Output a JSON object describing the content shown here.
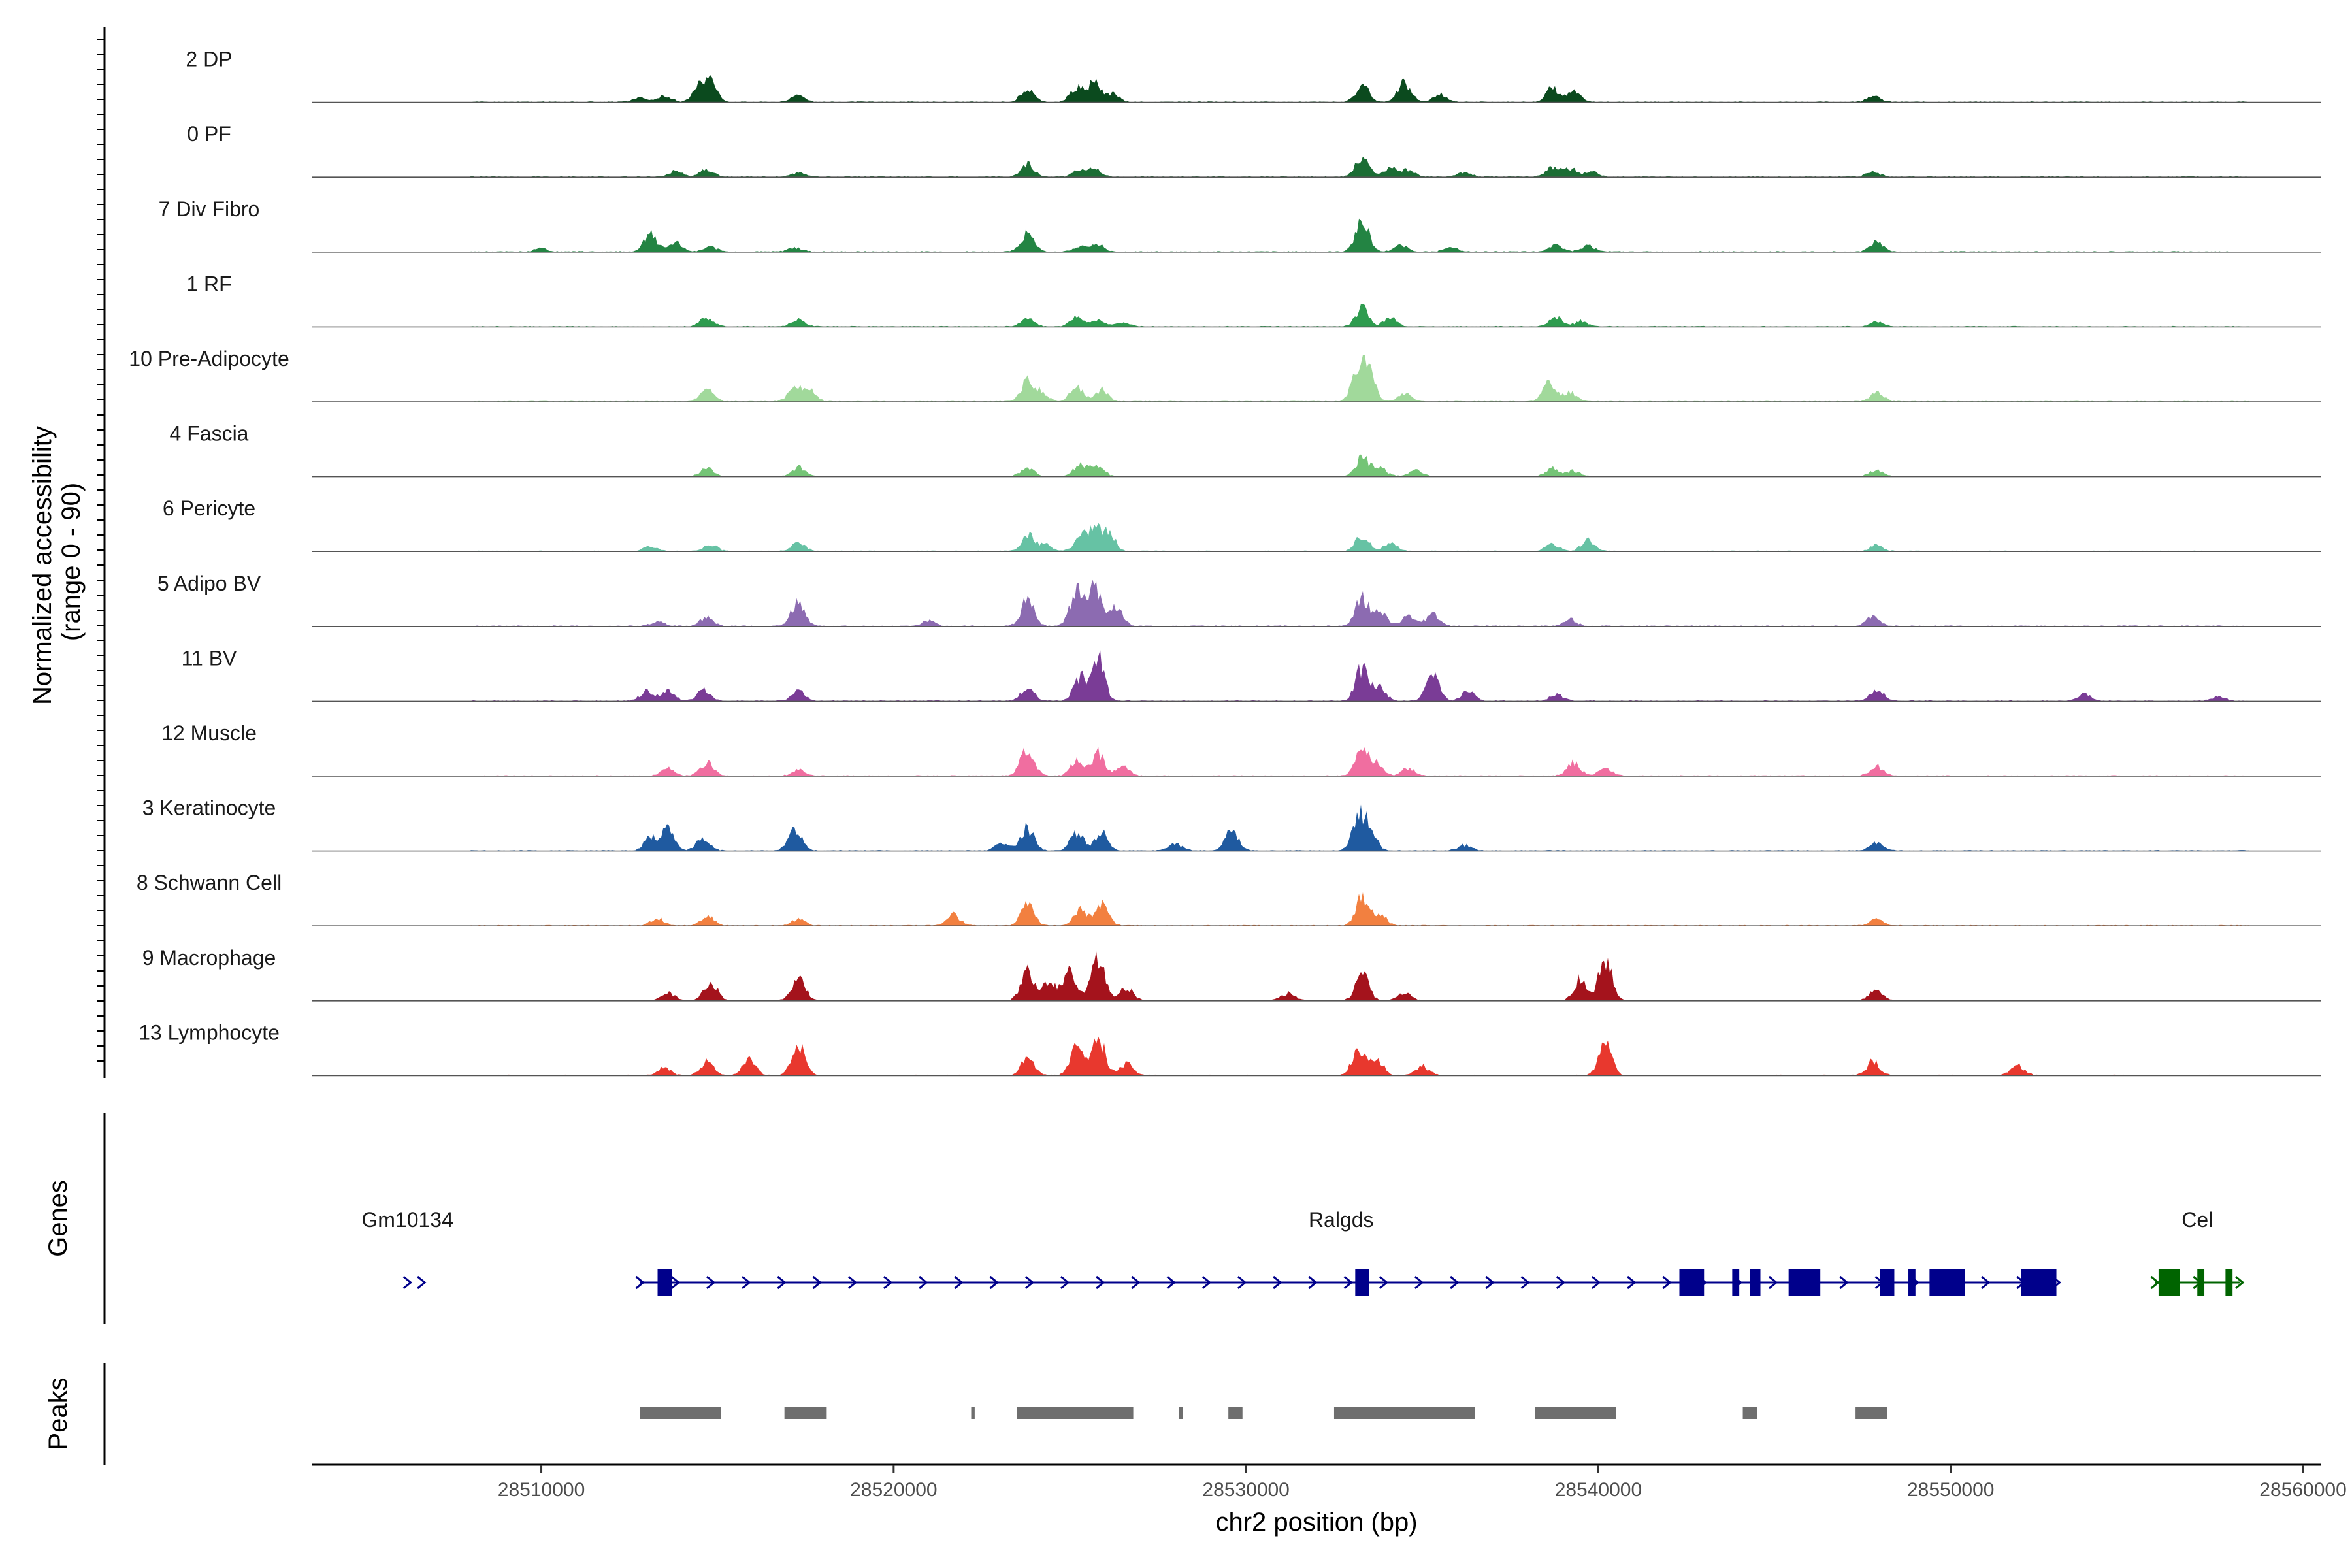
{
  "chart_data": {
    "type": "area",
    "title": "",
    "xlabel": "chr2 position (bp)",
    "ylabel_lines": [
      "Normalized accessibility",
      "(range 0 - 90)"
    ],
    "y_range": [
      0,
      90
    ],
    "xlim": [
      28503500,
      28560500
    ],
    "xticks": [
      {
        "value": 28510000,
        "label": "28510000"
      },
      {
        "value": 28520000,
        "label": "28520000"
      },
      {
        "value": 28530000,
        "label": "28530000"
      },
      {
        "value": 28540000,
        "label": "28540000"
      },
      {
        "value": 28550000,
        "label": "28550000"
      },
      {
        "value": 28560000,
        "label": "28560000"
      }
    ],
    "panel_labels": {
      "genes": "Genes",
      "peaks": "Peaks"
    },
    "series": [
      {
        "name": "2 DP",
        "color": "#0b4a1e",
        "peaks": [
          [
            28512800,
            8
          ],
          [
            28513500,
            12
          ],
          [
            28514500,
            26
          ],
          [
            28514800,
            32
          ],
          [
            28517300,
            13
          ],
          [
            28523800,
            24
          ],
          [
            28525200,
            27
          ],
          [
            28525700,
            35
          ],
          [
            28526200,
            15
          ],
          [
            28533300,
            30
          ],
          [
            28534500,
            36
          ],
          [
            28535500,
            14
          ],
          [
            28538700,
            26
          ],
          [
            28539300,
            18
          ],
          [
            28547800,
            12
          ]
        ]
      },
      {
        "name": "0 PF",
        "color": "#1b6d34",
        "peaks": [
          [
            28513800,
            10
          ],
          [
            28514700,
            14
          ],
          [
            28517300,
            8
          ],
          [
            28523800,
            23
          ],
          [
            28525300,
            15
          ],
          [
            28525700,
            14
          ],
          [
            28533300,
            40
          ],
          [
            28534100,
            16
          ],
          [
            28534600,
            12
          ],
          [
            28536200,
            8
          ],
          [
            28538700,
            17
          ],
          [
            28539200,
            15
          ],
          [
            28539800,
            10
          ],
          [
            28547800,
            10
          ]
        ]
      },
      {
        "name": "7 Div Fibro",
        "color": "#238443",
        "peaks": [
          [
            28510000,
            6
          ],
          [
            28513100,
            32
          ],
          [
            28513800,
            17
          ],
          [
            28514800,
            10
          ],
          [
            28517200,
            8
          ],
          [
            28523800,
            33
          ],
          [
            28525300,
            9
          ],
          [
            28525800,
            13
          ],
          [
            28533300,
            62
          ],
          [
            28534400,
            14
          ],
          [
            28535800,
            9
          ],
          [
            28538800,
            13
          ],
          [
            28539700,
            12
          ],
          [
            28547900,
            18
          ]
        ]
      },
      {
        "name": "1 RF",
        "color": "#2e9c4f",
        "peaks": [
          [
            28514700,
            16
          ],
          [
            28517300,
            15
          ],
          [
            28523800,
            15
          ],
          [
            28525200,
            18
          ],
          [
            28525800,
            13
          ],
          [
            28526500,
            8
          ],
          [
            28533300,
            34
          ],
          [
            28534100,
            17
          ],
          [
            28538800,
            18
          ],
          [
            28539500,
            10
          ],
          [
            28547900,
            10
          ]
        ]
      },
      {
        "name": "10 Pre-Adipocyte",
        "color": "#a1d99b",
        "peaks": [
          [
            28514700,
            24
          ],
          [
            28517200,
            27
          ],
          [
            28517600,
            21
          ],
          [
            28523800,
            38
          ],
          [
            28524200,
            16
          ],
          [
            28525200,
            26
          ],
          [
            28525900,
            22
          ],
          [
            28533200,
            62
          ],
          [
            28533500,
            48
          ],
          [
            28534500,
            14
          ],
          [
            28538600,
            34
          ],
          [
            28539200,
            18
          ],
          [
            28547900,
            16
          ]
        ]
      },
      {
        "name": "4 Fascia",
        "color": "#74c476",
        "peaks": [
          [
            28514700,
            14
          ],
          [
            28517300,
            17
          ],
          [
            28523800,
            16
          ],
          [
            28525300,
            22
          ],
          [
            28525800,
            17
          ],
          [
            28533300,
            36
          ],
          [
            28533800,
            17
          ],
          [
            28534800,
            11
          ],
          [
            28538700,
            14
          ],
          [
            28539300,
            11
          ],
          [
            28547900,
            12
          ]
        ]
      },
      {
        "name": "6 Pericyte",
        "color": "#66c2a4",
        "peaks": [
          [
            28513100,
            10
          ],
          [
            28514800,
            12
          ],
          [
            28517300,
            17
          ],
          [
            28523800,
            30
          ],
          [
            28524300,
            12
          ],
          [
            28525300,
            24
          ],
          [
            28525700,
            42
          ],
          [
            28526100,
            32
          ],
          [
            28533300,
            28
          ],
          [
            28534100,
            16
          ],
          [
            28538700,
            13
          ],
          [
            28539700,
            22
          ],
          [
            28547900,
            10
          ]
        ]
      },
      {
        "name": "5 Adipo BV",
        "color": "#8c6bb1",
        "peaks": [
          [
            28513300,
            9
          ],
          [
            28514700,
            16
          ],
          [
            28517300,
            49
          ],
          [
            28521000,
            10
          ],
          [
            28523800,
            48
          ],
          [
            28525200,
            66
          ],
          [
            28525700,
            72
          ],
          [
            28526300,
            38
          ],
          [
            28533300,
            54
          ],
          [
            28533800,
            28
          ],
          [
            28534600,
            20
          ],
          [
            28535300,
            22
          ],
          [
            28539200,
            12
          ],
          [
            28547800,
            18
          ]
        ]
      },
      {
        "name": "11 BV",
        "color": "#7a3c96",
        "peaks": [
          [
            28513000,
            18
          ],
          [
            28513600,
            19
          ],
          [
            28514600,
            20
          ],
          [
            28517300,
            18
          ],
          [
            28523800,
            24
          ],
          [
            28525300,
            42
          ],
          [
            28525800,
            80
          ],
          [
            28533300,
            64
          ],
          [
            28533800,
            24
          ],
          [
            28535300,
            46
          ],
          [
            28536300,
            18
          ],
          [
            28538800,
            13
          ],
          [
            28547900,
            23
          ],
          [
            28553800,
            12
          ],
          [
            28557600,
            8
          ]
        ]
      },
      {
        "name": "12 Muscle",
        "color": "#f06ea0",
        "peaks": [
          [
            28513600,
            14
          ],
          [
            28514700,
            26
          ],
          [
            28517300,
            10
          ],
          [
            28523800,
            54
          ],
          [
            28525200,
            26
          ],
          [
            28525800,
            43
          ],
          [
            28526500,
            18
          ],
          [
            28533300,
            50
          ],
          [
            28533700,
            22
          ],
          [
            28534600,
            14
          ],
          [
            28539300,
            24
          ],
          [
            28540200,
            14
          ],
          [
            28547900,
            18
          ]
        ]
      },
      {
        "name": "3 Keratinocyte",
        "color": "#1f5aa0",
        "peaks": [
          [
            28513100,
            24
          ],
          [
            28513600,
            38
          ],
          [
            28514600,
            24
          ],
          [
            28517200,
            41
          ],
          [
            28523100,
            16
          ],
          [
            28523800,
            42
          ],
          [
            28525200,
            32
          ],
          [
            28525900,
            36
          ],
          [
            28528000,
            12
          ],
          [
            28529600,
            38
          ],
          [
            28533200,
            56
          ],
          [
            28533500,
            40
          ],
          [
            28536200,
            10
          ],
          [
            28547900,
            14
          ]
        ]
      },
      {
        "name": "8 Schwann Cell",
        "color": "#f28040",
        "peaks": [
          [
            28513300,
            14
          ],
          [
            28514700,
            18
          ],
          [
            28517300,
            12
          ],
          [
            28521700,
            20
          ],
          [
            28523800,
            40
          ],
          [
            28525300,
            28
          ],
          [
            28525900,
            38
          ],
          [
            28533300,
            52
          ],
          [
            28533800,
            22
          ],
          [
            28547900,
            12
          ]
        ]
      },
      {
        "name": "9 Macrophage",
        "color": "#a4131c",
        "peaks": [
          [
            28513600,
            14
          ],
          [
            28514800,
            36
          ],
          [
            28517300,
            42
          ],
          [
            28523800,
            54
          ],
          [
            28524400,
            36
          ],
          [
            28525000,
            58
          ],
          [
            28525800,
            78
          ],
          [
            28526600,
            24
          ],
          [
            28531200,
            14
          ],
          [
            28533300,
            48
          ],
          [
            28534500,
            14
          ],
          [
            28540200,
            78
          ],
          [
            28539500,
            40
          ],
          [
            28547900,
            22
          ]
        ]
      },
      {
        "name": "13 Lymphocyte",
        "color": "#e8382e",
        "peaks": [
          [
            28513500,
            14
          ],
          [
            28514700,
            24
          ],
          [
            28515900,
            28
          ],
          [
            28517300,
            62
          ],
          [
            28523800,
            34
          ],
          [
            28525200,
            58
          ],
          [
            28525800,
            72
          ],
          [
            28526600,
            22
          ],
          [
            28533200,
            48
          ],
          [
            28533700,
            32
          ],
          [
            28535000,
            18
          ],
          [
            28540200,
            54
          ],
          [
            28547800,
            26
          ],
          [
            28551900,
            18
          ]
        ]
      }
    ],
    "genes": [
      {
        "name": "Gm10134",
        "color": "#00008b",
        "start": 28506200,
        "end": 28506600,
        "label_pos": 28506200,
        "exons": []
      },
      {
        "name": "Ralgds",
        "color": "#00008b",
        "start": 28512800,
        "end": 28553000,
        "label_pos": 28532700,
        "exons": [
          [
            28513300,
            28513700
          ],
          [
            28533100,
            28533500
          ],
          [
            28542300,
            28543000
          ],
          [
            28543800,
            28544000
          ],
          [
            28544300,
            28544600
          ],
          [
            28545400,
            28546300
          ],
          [
            28548000,
            28548400
          ],
          [
            28548800,
            28549000
          ],
          [
            28549400,
            28550400
          ],
          [
            28552000,
            28553000
          ]
        ]
      },
      {
        "name": "Cel",
        "color": "#006400",
        "start": 28555800,
        "end": 28558200,
        "label_pos": 28557000,
        "exons": [
          [
            28555900,
            28556500
          ],
          [
            28557000,
            28557200
          ],
          [
            28557800,
            28558000
          ]
        ]
      }
    ],
    "peak_regions": [
      [
        28512800,
        28515100
      ],
      [
        28516900,
        28518100
      ],
      [
        28522200,
        28522300
      ],
      [
        28523500,
        28526800
      ],
      [
        28528100,
        28528200
      ],
      [
        28529500,
        28529900
      ],
      [
        28532500,
        28536500
      ],
      [
        28538200,
        28540500
      ],
      [
        28544100,
        28544500
      ],
      [
        28547300,
        28548200
      ]
    ]
  }
}
